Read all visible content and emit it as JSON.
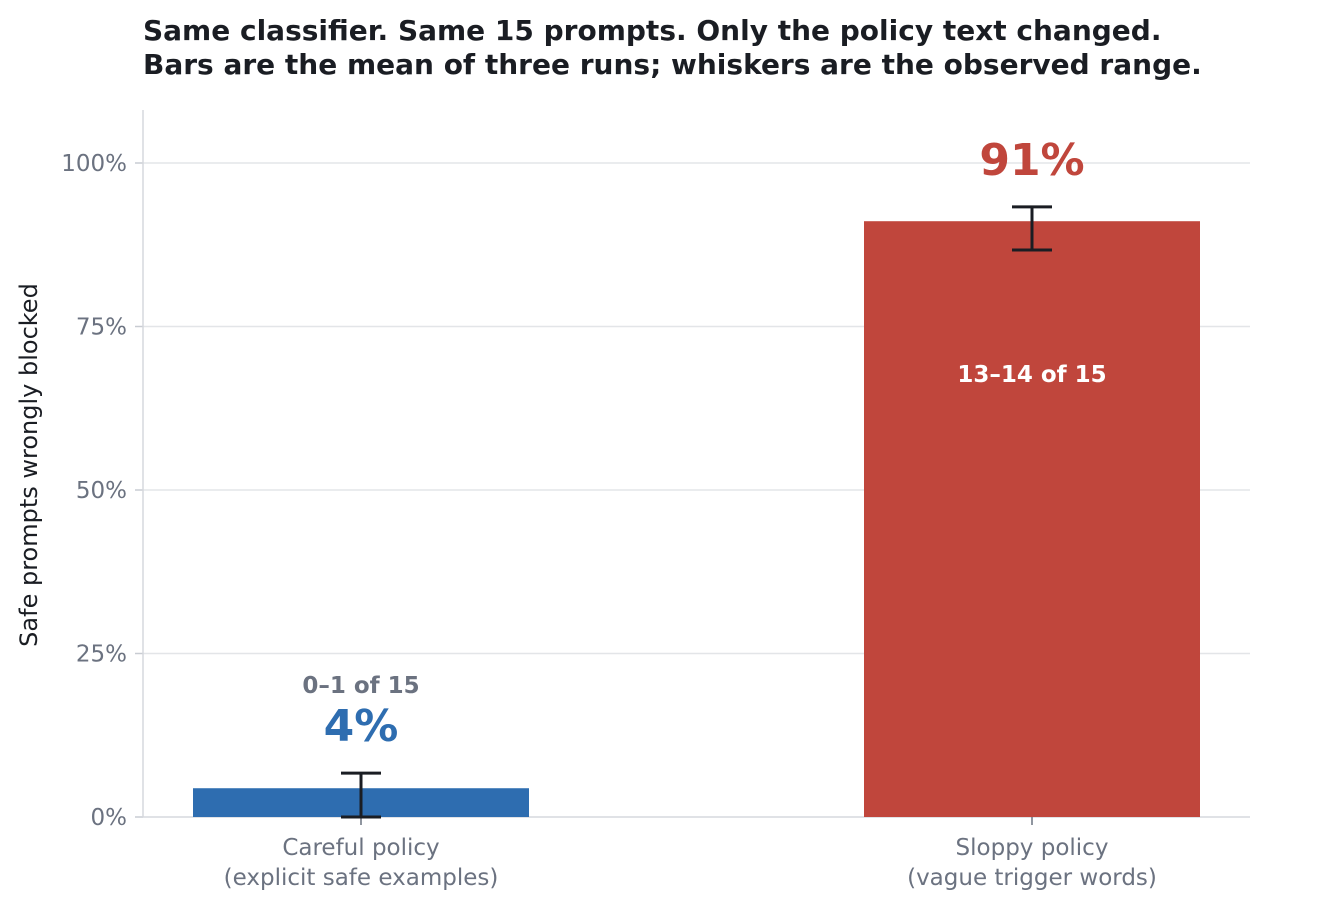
{
  "chart_data": {
    "type": "bar",
    "title_lines": [
      "Same classifier. Same 15 prompts. Only the policy text changed.",
      "Bars are the mean of three runs; whiskers are the observed range."
    ],
    "ylabel": "Safe prompts wrongly blocked",
    "xlabel": "",
    "ylim": [
      0,
      108
    ],
    "yticks": [
      0,
      25,
      50,
      75,
      100
    ],
    "ytick_labels": [
      "0%",
      "25%",
      "50%",
      "75%",
      "100%"
    ],
    "grid": "horizontal",
    "categories": [
      [
        "Careful policy",
        "(explicit safe examples)"
      ],
      [
        "Sloppy policy",
        "(vague trigger words)"
      ]
    ],
    "values": [
      4.4,
      91.1
    ],
    "error_range": [
      [
        0,
        6.7
      ],
      [
        86.7,
        93.3
      ]
    ],
    "value_labels": [
      "4%",
      "91%"
    ],
    "count_labels": [
      "0–1 of 15",
      "13–14 of 15"
    ],
    "colors": [
      "#2e6db0",
      "#c0463c"
    ],
    "value_label_colors": [
      "#2e6db0",
      "#c0463c"
    ],
    "count_label_colors": [
      "#6b7280",
      "#ffffff"
    ],
    "count_label_positions": [
      "above",
      "inside"
    ]
  }
}
